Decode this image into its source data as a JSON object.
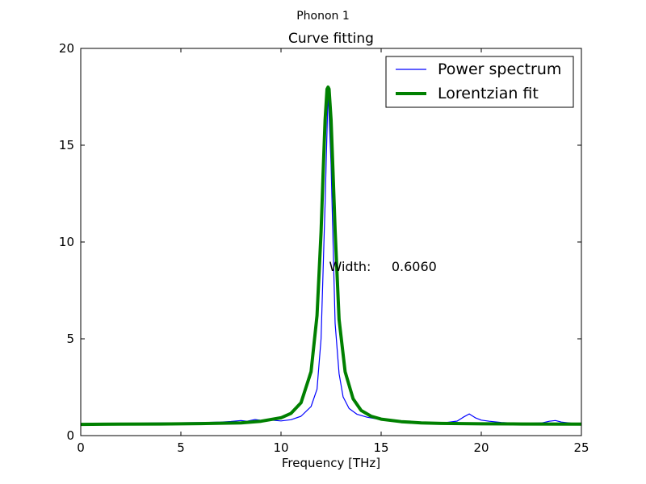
{
  "figure": {
    "suptitle": "Phonon 1"
  },
  "chart_data": {
    "type": "line",
    "title": "Curve fitting",
    "xlabel": "Frequency [THz]",
    "ylabel": "",
    "xlim": [
      0,
      25
    ],
    "ylim": [
      0,
      20
    ],
    "xticks": [
      0,
      5,
      10,
      15,
      20,
      25
    ],
    "yticks": [
      0,
      5,
      10,
      15,
      20
    ],
    "xtick_labels": [
      "0",
      "5",
      "10",
      "15",
      "20",
      "25"
    ],
    "ytick_labels": [
      "0",
      "5",
      "10",
      "15",
      "20"
    ],
    "grid": false,
    "legend_placement": "top-right",
    "annotation": {
      "text": "Width:     0.6060",
      "x": 12.4,
      "y": 8.7
    },
    "series": [
      {
        "name": "Power spectrum",
        "color": "#0000ff",
        "style": "thin",
        "x": [
          0,
          2,
          4,
          6,
          7,
          7.5,
          8,
          8.3,
          8.7,
          9.1,
          9.5,
          10,
          10.5,
          11,
          11.5,
          11.8,
          12,
          12.2,
          12.35,
          12.5,
          12.7,
          12.9,
          13.1,
          13.4,
          13.8,
          14.3,
          15,
          16,
          17,
          18,
          18.8,
          19.1,
          19.4,
          19.7,
          20,
          20.4,
          21,
          22,
          23,
          23.4,
          23.7,
          24,
          24.5,
          25
        ],
        "y": [
          0.62,
          0.63,
          0.65,
          0.67,
          0.7,
          0.73,
          0.78,
          0.74,
          0.83,
          0.77,
          0.8,
          0.76,
          0.82,
          1.0,
          1.5,
          2.4,
          5.0,
          12.0,
          17.8,
          14.0,
          5.8,
          3.2,
          2.0,
          1.4,
          1.1,
          0.95,
          0.82,
          0.72,
          0.66,
          0.64,
          0.75,
          0.95,
          1.12,
          0.92,
          0.8,
          0.74,
          0.68,
          0.63,
          0.65,
          0.74,
          0.78,
          0.7,
          0.64,
          0.62
        ]
      },
      {
        "name": "Lorentzian fit",
        "color": "#008000",
        "style": "thick",
        "x": [
          0,
          2,
          4,
          6,
          8,
          9,
          10,
          10.5,
          11,
          11.5,
          11.8,
          12,
          12.1,
          12.2,
          12.3,
          12.35,
          12.4,
          12.5,
          12.6,
          12.7,
          12.9,
          13.2,
          13.6,
          14,
          14.5,
          15,
          16,
          17,
          18,
          20,
          22,
          25
        ],
        "y": [
          0.58,
          0.59,
          0.6,
          0.62,
          0.66,
          0.74,
          0.92,
          1.15,
          1.7,
          3.3,
          6.2,
          10.5,
          13.5,
          16.3,
          17.9,
          18.0,
          17.9,
          16.3,
          13.5,
          10.6,
          6.0,
          3.3,
          1.9,
          1.3,
          1.0,
          0.85,
          0.72,
          0.66,
          0.63,
          0.61,
          0.6,
          0.59
        ]
      }
    ]
  }
}
